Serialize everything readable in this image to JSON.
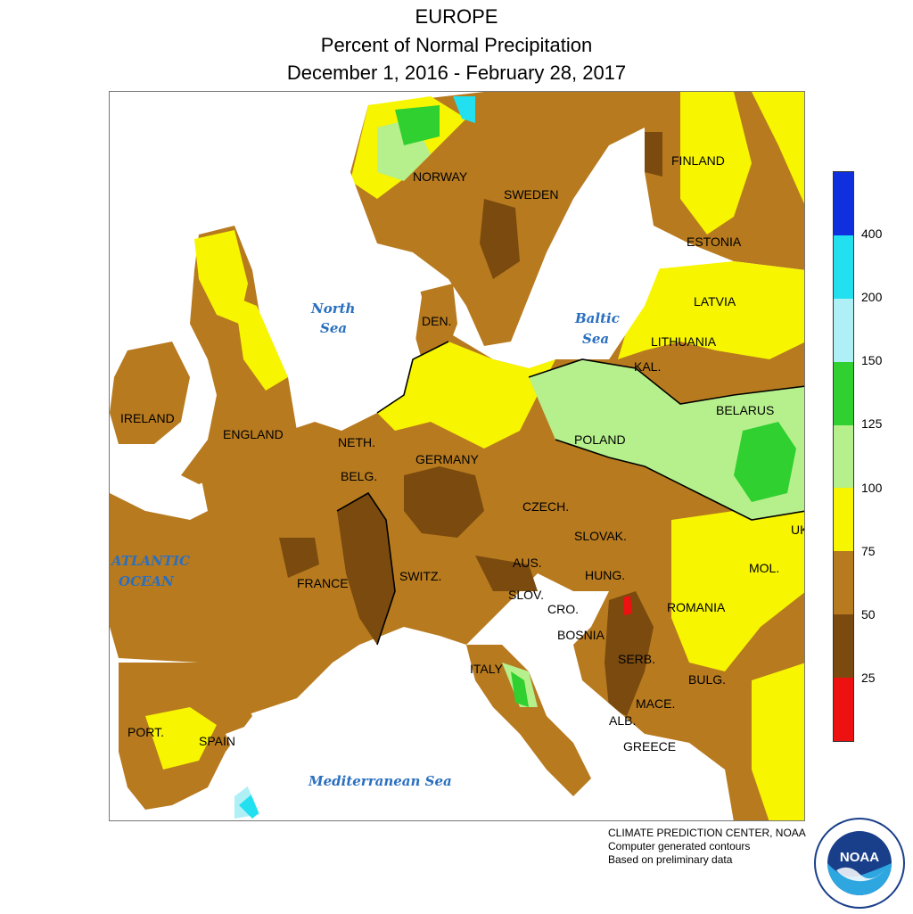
{
  "title": {
    "line1": "EUROPE",
    "line2": "Percent of Normal Precipitation",
    "line3": "December 1, 2016 - February 28, 2017"
  },
  "map": {
    "countries": [
      "NORWAY",
      "SWEDEN",
      "FINLAND",
      "ESTONIA",
      "LATVIA",
      "LITHUANIA",
      "KAL.",
      "BELARUS",
      "DEN.",
      "IRELAND",
      "ENGLAND",
      "NETH.",
      "BELG.",
      "GERMANY",
      "POLAND",
      "CZECH.",
      "SLOVAK.",
      "FRANCE",
      "SWITZ.",
      "AUS.",
      "HUNG.",
      "SLOV.",
      "CRO.",
      "ROMANIA",
      "MOL.",
      "BOSNIA",
      "SERB.",
      "BULG.",
      "ITALY",
      "MACE.",
      "ALB.",
      "GREECE",
      "PORT.",
      "SPAIN",
      "UKR"
    ],
    "seas": {
      "north_sea": [
        "North",
        "Sea"
      ],
      "baltic_sea": [
        "Baltic",
        "Sea"
      ],
      "atlantic": [
        "ATLANTIC",
        "OCEAN"
      ],
      "mediterranean": "Mediterranean Sea"
    },
    "colors": {
      "water": "#ffffff",
      "p25_50": "#7a4a0e",
      "p50_75": "#b77a1f",
      "p75_100": "#f7f500",
      "p100_125": "#b6f08c",
      "p125_150": "#2fd02f",
      "p150_200": "#aef0f5",
      "p200_400": "#22e0f0",
      "p400": "#1030e0",
      "p0_25": "#ee1111"
    }
  },
  "legend": {
    "colors": [
      "#1030e0",
      "#22e0f0",
      "#aef0f5",
      "#2fd02f",
      "#b6f08c",
      "#f7f500",
      "#b77a1f",
      "#7a4a0e",
      "#ee1111"
    ],
    "labels": [
      "400",
      "200",
      "150",
      "125",
      "100",
      "75",
      "50",
      "25"
    ]
  },
  "credits": {
    "line1": "CLIMATE PREDICTION CENTER, NOAA",
    "line2": "Computer generated contours",
    "line3": "Based on preliminary data"
  },
  "logo": {
    "text": "NOAA",
    "icon": "noaa-logo-icon"
  }
}
